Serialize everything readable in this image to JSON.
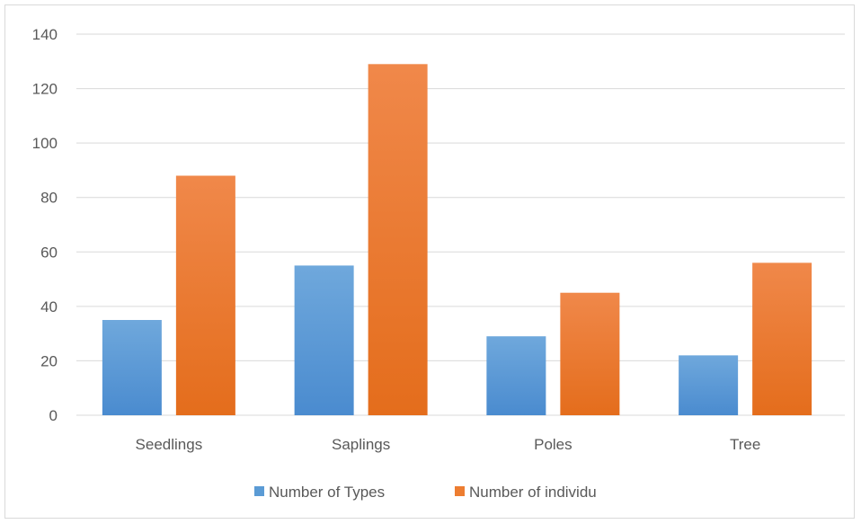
{
  "chart_data": {
    "type": "bar",
    "title": "",
    "xlabel": "",
    "ylabel": "",
    "categories": [
      "Seedlings",
      "Saplings",
      "Poles",
      "Tree"
    ],
    "series": [
      {
        "name": "Number of Types",
        "values": [
          35,
          55,
          29,
          22
        ],
        "color": "#5b9bd5"
      },
      {
        "name": "Number of individu",
        "values": [
          88,
          129,
          45,
          56
        ],
        "color": "#ed7d31"
      }
    ],
    "ylim": [
      0,
      140
    ],
    "yticks": [
      0,
      20,
      40,
      60,
      80,
      100,
      120,
      140
    ],
    "grid": true,
    "legend": "bottom"
  }
}
